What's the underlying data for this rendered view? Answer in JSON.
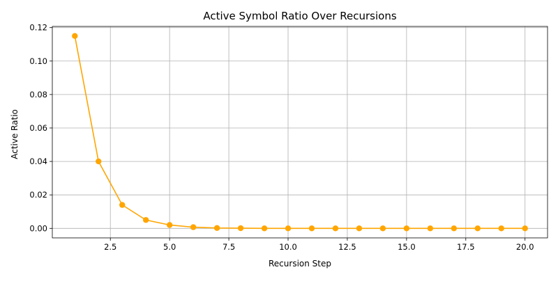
{
  "chart_data": {
    "type": "line",
    "title": "Active Symbol Ratio Over Recursions",
    "xlabel": "Recursion Step",
    "ylabel": "Active Ratio",
    "xlim": [
      0.05,
      20.95
    ],
    "ylim": [
      -0.0057,
      0.1207
    ],
    "xticks": [
      2.5,
      5.0,
      7.5,
      10.0,
      12.5,
      15.0,
      17.5,
      20.0
    ],
    "xtick_labels": [
      "2.5",
      "5.0",
      "7.5",
      "10.0",
      "12.5",
      "15.0",
      "17.5",
      "20.0"
    ],
    "yticks": [
      0.0,
      0.02,
      0.04,
      0.06,
      0.08,
      0.1,
      0.12
    ],
    "ytick_labels": [
      "0.00",
      "0.02",
      "0.04",
      "0.06",
      "0.08",
      "0.10",
      "0.12"
    ],
    "grid": true,
    "series": [
      {
        "color": "#ffa500",
        "marker": "circle",
        "x": [
          1,
          2,
          3,
          4,
          5,
          6,
          7,
          8,
          9,
          10,
          11,
          12,
          13,
          14,
          15,
          16,
          17,
          18,
          19,
          20
        ],
        "y": [
          0.115,
          0.04,
          0.014,
          0.005,
          0.002,
          0.0007,
          0.0002,
          0.0001,
          0.0,
          0.0,
          0.0,
          0.0,
          0.0,
          0.0,
          0.0,
          0.0,
          0.0,
          0.0,
          0.0,
          0.0
        ]
      }
    ]
  }
}
